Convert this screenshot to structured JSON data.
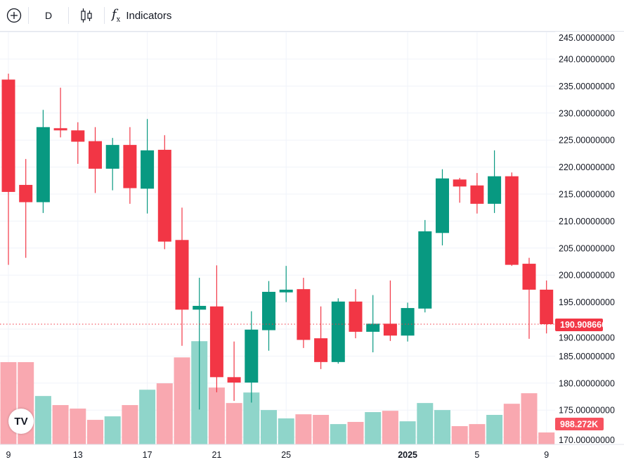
{
  "toolbar": {
    "add_symbol_icon": "plus-circle-icon",
    "interval": "D",
    "chart_type_icon": "candles-icon",
    "indicators_icon": "fx-icon",
    "indicators_label": "Indicators"
  },
  "colors": {
    "up": "#089981",
    "down": "#f23645",
    "up_volume": "#8fd5ca",
    "down_volume": "#f9a8b0",
    "grid": "#f0f3fa"
  },
  "logo_text": "TV",
  "chart_data": {
    "type": "candlestick",
    "price_axis": {
      "ticks": [
        245,
        240,
        235,
        230,
        225,
        220,
        215,
        210,
        205,
        200,
        195,
        190,
        185,
        180,
        175,
        170
      ],
      "tick_labels": [
        "245.00000000",
        "240.00000000",
        "235.00000000",
        "230.00000000",
        "225.00000000",
        "220.00000000",
        "215.00000000",
        "210.00000000",
        "205.00000000",
        "200.00000000",
        "195.00000000",
        "190.00000000",
        "185.00000000",
        "180.00000000",
        "175.00000000",
        "170.00000000"
      ]
    },
    "time_axis": {
      "labels": [
        {
          "index": 0,
          "text": "9"
        },
        {
          "index": 4,
          "text": "13"
        },
        {
          "index": 8,
          "text": "17"
        },
        {
          "index": 12,
          "text": "21"
        },
        {
          "index": 16,
          "text": "25"
        },
        {
          "index": 23,
          "text": "2025"
        },
        {
          "index": 27,
          "text": "5"
        },
        {
          "index": 31,
          "text": "9"
        }
      ]
    },
    "last_price": 190.90866667,
    "last_price_label": "190.90866667",
    "last_volume_label": "988.272K",
    "ohlc": [
      [
        236.2,
        237.3,
        201.9,
        215.4
      ],
      [
        216.7,
        221.5,
        203.2,
        213.5
      ],
      [
        213.5,
        230.6,
        211.5,
        227.4
      ],
      [
        227.2,
        234.7,
        225.5,
        226.8
      ],
      [
        226.8,
        228.3,
        220.6,
        224.7
      ],
      [
        224.8,
        227.4,
        215.2,
        219.7
      ],
      [
        219.7,
        225.4,
        215.7,
        224.1
      ],
      [
        224.1,
        227.4,
        213.2,
        216.1
      ],
      [
        216.0,
        228.9,
        211.4,
        223.1
      ],
      [
        223.2,
        225.9,
        204.8,
        206.2
      ],
      [
        206.5,
        212.5,
        186.9,
        193.6
      ],
      [
        193.6,
        199.5,
        175.1,
        194.3
      ],
      [
        194.2,
        201.8,
        178.3,
        181.1
      ],
      [
        181.1,
        187.7,
        176.7,
        180.1
      ],
      [
        180.1,
        193.3,
        176.4,
        189.9
      ],
      [
        189.8,
        198.9,
        186.0,
        196.9
      ],
      [
        196.8,
        201.7,
        195.0,
        197.3
      ],
      [
        197.4,
        199.5,
        186.5,
        188.0
      ],
      [
        188.3,
        194.2,
        182.6,
        183.9
      ],
      [
        183.9,
        195.7,
        183.6,
        195.1
      ],
      [
        195.1,
        197.4,
        188.3,
        189.5
      ],
      [
        189.5,
        196.3,
        185.7,
        191.0
      ],
      [
        191.0,
        199.0,
        187.8,
        188.8
      ],
      [
        188.8,
        194.9,
        187.7,
        193.9
      ],
      [
        193.8,
        210.2,
        193.1,
        208.1
      ],
      [
        207.8,
        219.6,
        205.5,
        217.9
      ],
      [
        217.7,
        218.0,
        213.4,
        216.4
      ],
      [
        216.6,
        218.9,
        211.4,
        213.2
      ],
      [
        213.2,
        223.1,
        211.5,
        218.3
      ],
      [
        218.3,
        219.0,
        201.7,
        201.9
      ],
      [
        202.1,
        203.2,
        188.2,
        197.3
      ],
      [
        197.3,
        199.0,
        189.2,
        190.90866667
      ]
    ],
    "volume_k": [
      6800,
      6800,
      4000,
      3250,
      2960,
      2030,
      2320,
      3250,
      4520,
      5050,
      7190,
      8530,
      4700,
      3420,
      4290,
      2840,
      2150,
      2490,
      2440,
      1680,
      1860,
      2670,
      2780,
      1910,
      3420,
      2840,
      1510,
      1680,
      2440,
      3360,
      4230,
      988.272
    ]
  }
}
